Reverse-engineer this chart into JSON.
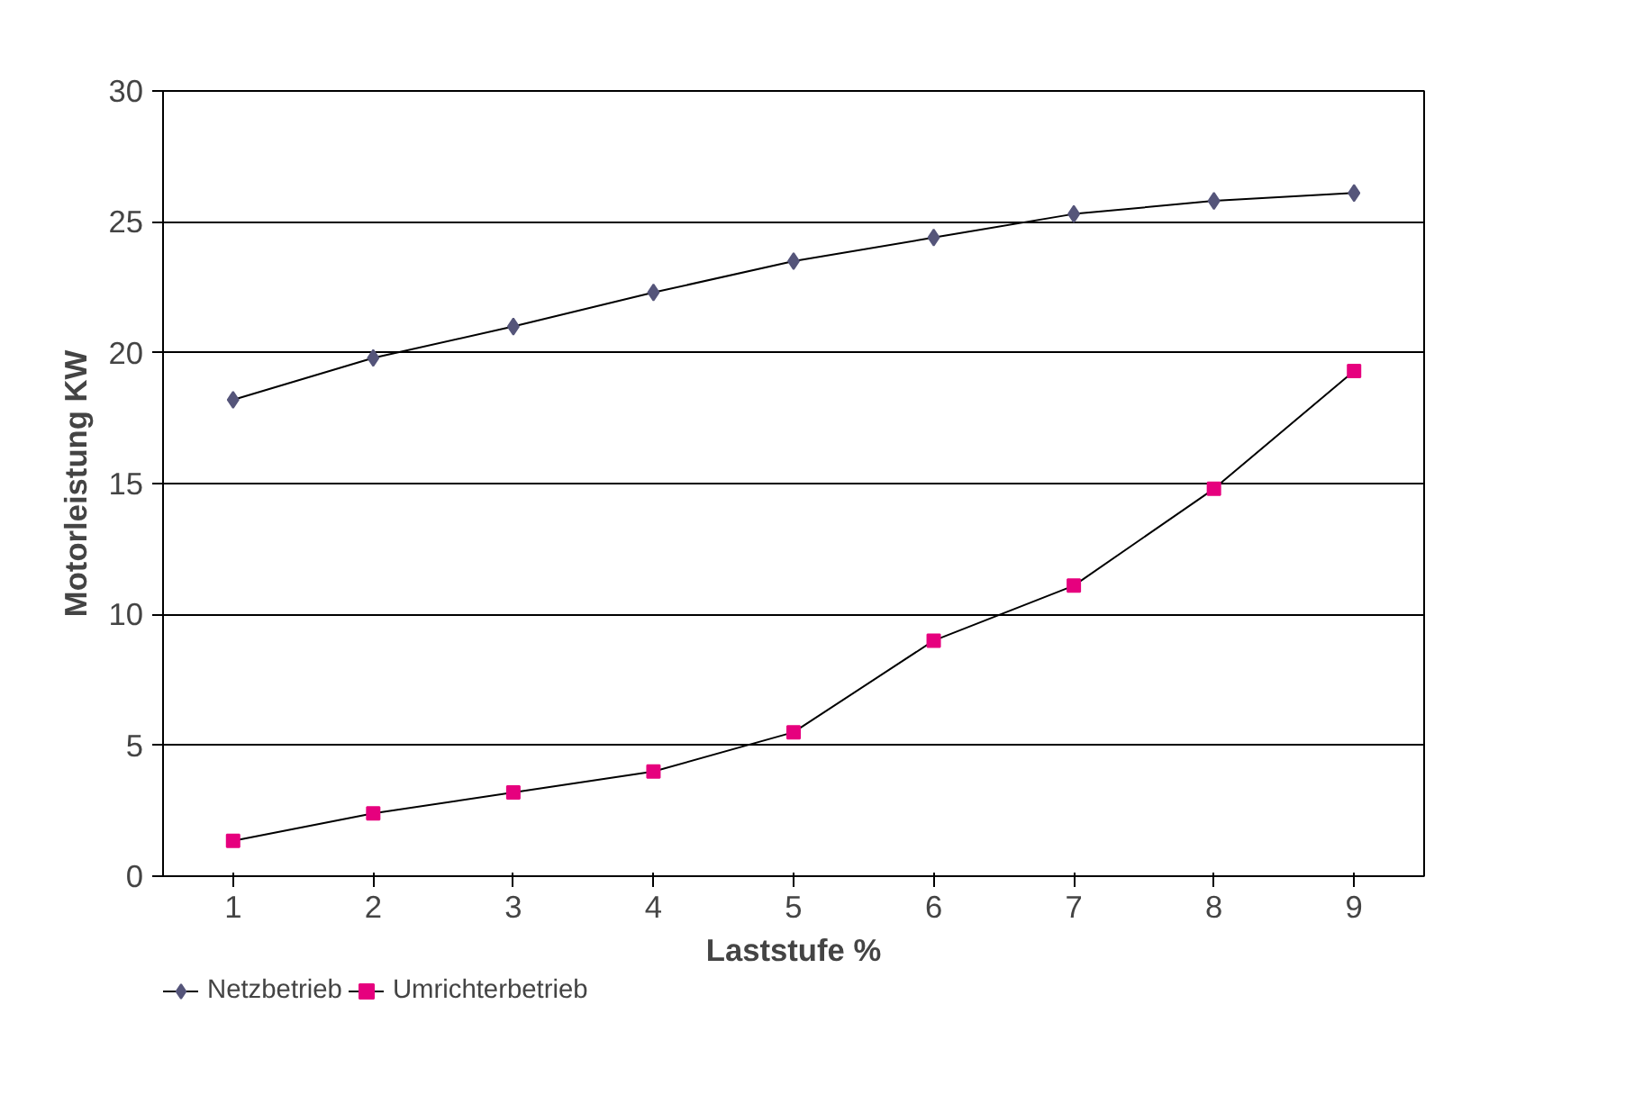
{
  "chart_data": {
    "type": "line",
    "xlabel": "Laststufe %",
    "ylabel": "Motorleistung KW",
    "categories": [
      "1",
      "2",
      "3",
      "4",
      "5",
      "6",
      "7",
      "8",
      "9"
    ],
    "series": [
      {
        "name": "Netzbetrieb",
        "color": "#55557a",
        "marker": "diamond",
        "values": [
          18.2,
          19.8,
          21.0,
          22.3,
          23.5,
          24.4,
          25.3,
          25.8,
          26.1
        ]
      },
      {
        "name": "Umrichterbetrieb",
        "color": "#e6007e",
        "marker": "square",
        "values": [
          1.35,
          2.4,
          3.2,
          4.0,
          5.5,
          9.0,
          11.1,
          14.8,
          19.3
        ]
      }
    ],
    "ylim": [
      0,
      30
    ],
    "yticks": [
      0,
      5,
      10,
      15,
      20,
      25,
      30
    ],
    "grid": "y",
    "legend": "bottom left",
    "line_style": "solid"
  }
}
